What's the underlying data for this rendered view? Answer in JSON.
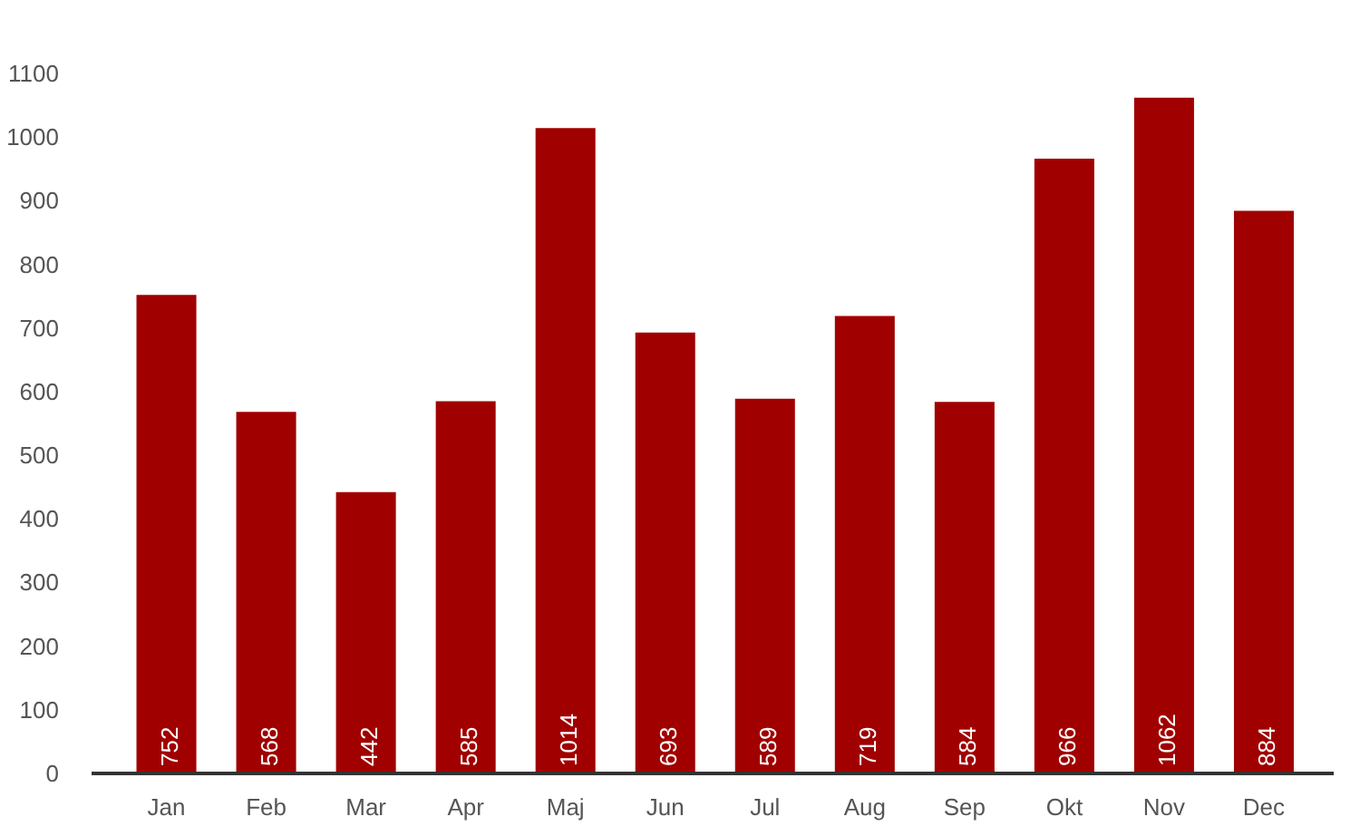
{
  "chart_data": {
    "type": "bar",
    "categories": [
      "Jan",
      "Feb",
      "Mar",
      "Apr",
      "Maj",
      "Jun",
      "Jul",
      "Aug",
      "Sep",
      "Okt",
      "Nov",
      "Dec"
    ],
    "values": [
      752,
      568,
      442,
      585,
      1014,
      693,
      589,
      719,
      584,
      966,
      1062,
      884
    ],
    "color": "#a00000",
    "data_labels": true,
    "grid": false,
    "ylim": [
      0,
      1100
    ],
    "yticks": [
      0,
      100,
      200,
      300,
      400,
      500,
      600,
      700,
      800,
      900,
      1000,
      1100
    ]
  }
}
